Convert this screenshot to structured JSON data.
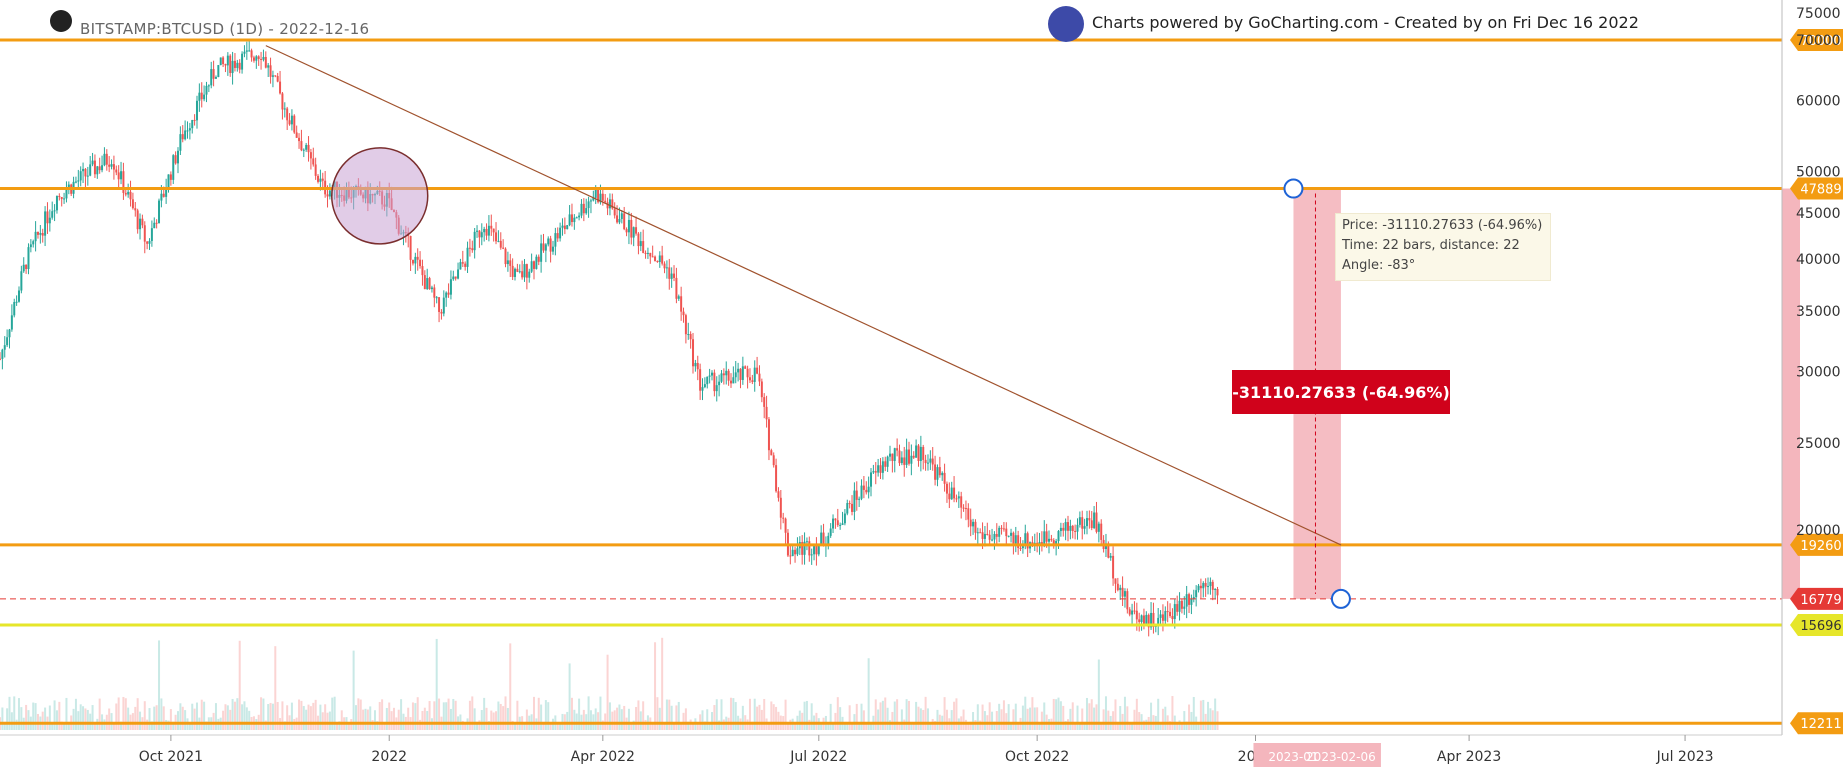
{
  "header": {
    "symbol": "BITSTAMP:BTCUSD (1D) - 2022-12-16",
    "brand": "Charts powered by GoCharting.com - Created by  on Fri Dec 16 2022"
  },
  "measure": {
    "label": "-31110.27633 (-64.96%)",
    "tooltip": {
      "price": "Price: -31110.27633 (-64.96%)",
      "time": "Time: 22 bars,  distance: 22",
      "angle": "Angle: -83°"
    },
    "start_date_label": "2023-01",
    "end_date_label": "2023-02-06",
    "from_price": 47889,
    "to_price": 16779
  },
  "chart_data": {
    "type": "candlestick",
    "title": "BITSTAMP:BTCUSD (1D) - 2022-12-16",
    "y_scale": "log",
    "ylim": [
      11800,
      77000
    ],
    "y_ticks": [
      75000,
      70000,
      60000,
      50000,
      45000,
      40000,
      35000,
      30000,
      25000,
      20000
    ],
    "x_ticks": [
      "Oct 2021",
      "2022",
      "Apr 2022",
      "Jul 2022",
      "Oct 2022",
      "2023",
      "Apr 2023",
      "Jul 2023"
    ],
    "x_tick_dates": [
      "2021-10-01",
      "2022-01-01",
      "2022-04-01",
      "2022-07-01",
      "2022-10-01",
      "2023-01-01",
      "2023-04-01",
      "2023-07-01"
    ],
    "price_path": [
      [
        "2021-07-21",
        31000
      ],
      [
        "2021-08-01",
        39800
      ],
      [
        "2021-08-14",
        47000
      ],
      [
        "2021-09-06",
        52000
      ],
      [
        "2021-09-21",
        41500
      ],
      [
        "2021-10-06",
        55000
      ],
      [
        "2021-10-20",
        65000
      ],
      [
        "2021-11-08",
        68000
      ],
      [
        "2021-11-19",
        58000
      ],
      [
        "2021-12-04",
        48000
      ],
      [
        "2021-12-31",
        46500
      ],
      [
        "2022-01-22",
        35000
      ],
      [
        "2022-02-10",
        44000
      ],
      [
        "2022-02-24",
        38000
      ],
      [
        "2022-03-29",
        47400
      ],
      [
        "2022-04-30",
        38500
      ],
      [
        "2022-05-12",
        29000
      ],
      [
        "2022-06-05",
        29900
      ],
      [
        "2022-06-18",
        19000
      ],
      [
        "2022-07-01",
        19300
      ],
      [
        "2022-07-30",
        24000
      ],
      [
        "2022-08-14",
        24400
      ],
      [
        "2022-09-06",
        19800
      ],
      [
        "2022-09-30",
        19400
      ],
      [
        "2022-10-25",
        20600
      ],
      [
        "2022-11-09",
        16200
      ],
      [
        "2022-11-21",
        15800
      ],
      [
        "2022-12-05",
        17000
      ],
      [
        "2022-12-13",
        17800
      ],
      [
        "2022-12-16",
        16779
      ]
    ],
    "horizontal_levels": [
      {
        "price": 70000,
        "label": "70000",
        "color": "#f39c12"
      },
      {
        "price": 47889,
        "label": "47889",
        "color": "#f39c12"
      },
      {
        "price": 19260,
        "label": "19260",
        "color": "#f39c12"
      },
      {
        "price": 16779,
        "label": "16779",
        "color": "#e53935",
        "style": "dashed"
      },
      {
        "price": 15696,
        "label": "15696",
        "color": "#e6e62a"
      },
      {
        "price": 12211,
        "label": "12211",
        "color": "#f39c12"
      }
    ],
    "trendline": {
      "from": [
        "2021-11-10",
        69000
      ],
      "to": [
        "2023-02-06",
        19260
      ]
    },
    "annotation_circle": {
      "date": "2021-12-28",
      "price": 47000
    },
    "colors": {
      "up": "#26a69a",
      "down": "#ef5350",
      "level": "#f39c12",
      "measure": "#d0021b"
    }
  }
}
